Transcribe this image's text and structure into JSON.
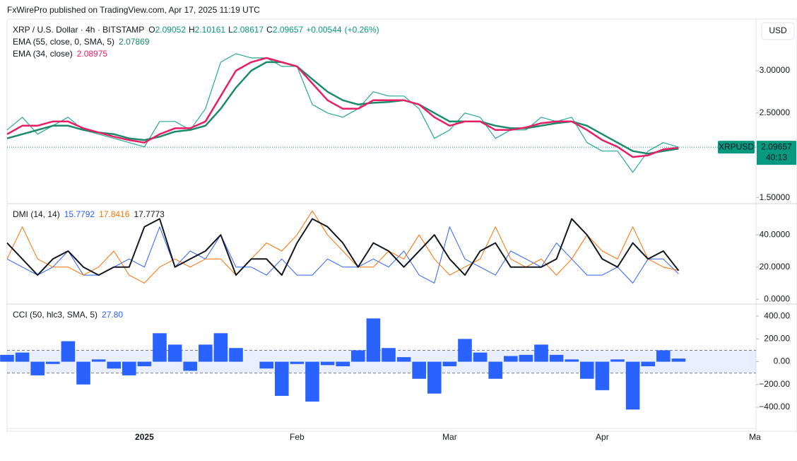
{
  "header": "FxWirePro published on TradingView.com, Apr 17, 2025 11:19 UTC",
  "currency": "USD",
  "symbol_tag": "XRPUSD",
  "countdown": "40:13",
  "chart_data": [
    {
      "type": "line",
      "title": "XRP / U.S. Dollar · 4h · BITSTAMP",
      "ohlc": [
        {
          "label": "O",
          "value": 2.09052
        },
        {
          "label": "H",
          "value": 2.10161
        },
        {
          "label": "L",
          "value": 2.08617
        },
        {
          "label": "C",
          "value": 2.09657
        }
      ],
      "change": "+0.00544",
      "change_pct": "(+0.26%)",
      "ylim": [
        1.43,
        3.6
      ],
      "yticks": [
        {
          "value": 1.5,
          "label": "1.50000"
        },
        {
          "value": 2.5,
          "label": "2.50000"
        },
        {
          "value": 3,
          "label": "3.00000"
        }
      ],
      "grid": false,
      "series": [
        {
          "color": "#26a69a",
          "width": 1.2,
          "values": [
            2.3,
            2.45,
            2.25,
            2.35,
            2.45,
            2.3,
            2.25,
            2.2,
            2.15,
            2.1,
            2.4,
            2.4,
            2.3,
            2.55,
            3.1,
            3.2,
            3.15,
            3.15,
            3.05,
            3.05,
            2.6,
            2.5,
            2.45,
            2.55,
            2.75,
            2.7,
            2.7,
            2.55,
            2.2,
            2.3,
            2.5,
            2.45,
            2.2,
            2.3,
            2.3,
            2.45,
            2.4,
            2.45,
            2.15,
            2.05,
            2.05,
            1.8,
            2.05,
            2.15,
            2.09657,
            null,
            null,
            null,
            null,
            null
          ]
        },
        {
          "name": "EMA (55, close, 0, SMA, 5)",
          "color": "#1b8a6b",
          "width": 2.5,
          "values": [
            2.2,
            2.25,
            2.3,
            2.35,
            2.35,
            2.3,
            2.27,
            2.25,
            2.2,
            2.18,
            2.22,
            2.28,
            2.3,
            2.35,
            2.55,
            2.8,
            3.0,
            3.1,
            3.1,
            3.05,
            2.9,
            2.75,
            2.65,
            2.6,
            2.62,
            2.63,
            2.65,
            2.6,
            2.5,
            2.4,
            2.4,
            2.4,
            2.35,
            2.32,
            2.32,
            2.35,
            2.38,
            2.4,
            2.35,
            2.25,
            2.15,
            2.05,
            2.02,
            2.05,
            2.07869,
            null,
            null,
            null,
            null,
            null
          ]
        },
        {
          "name": "EMA (34, close)",
          "color": "#e91e63",
          "width": 2.5,
          "values": [
            2.25,
            2.35,
            2.35,
            2.4,
            2.4,
            2.32,
            2.27,
            2.22,
            2.18,
            2.15,
            2.25,
            2.32,
            2.32,
            2.4,
            2.7,
            3.0,
            3.1,
            3.15,
            3.1,
            3.05,
            2.85,
            2.65,
            2.55,
            2.55,
            2.65,
            2.65,
            2.65,
            2.6,
            2.45,
            2.35,
            2.4,
            2.4,
            2.3,
            2.3,
            2.33,
            2.38,
            2.4,
            2.4,
            2.3,
            2.18,
            2.1,
            1.98,
            2.0,
            2.07,
            2.08975,
            null,
            null,
            null,
            null,
            null
          ]
        }
      ]
    },
    {
      "type": "line",
      "title": "DMI (14, 14)",
      "ylim": [
        -3,
        59
      ],
      "yticks": [
        {
          "value": 0,
          "label": "0.0000"
        },
        {
          "value": 20,
          "label": "20.0000"
        },
        {
          "value": 40,
          "label": "40.0000"
        }
      ],
      "grid": false,
      "series": [
        {
          "color": "#2962ff",
          "width": 1,
          "values": [
            25,
            20,
            15,
            20,
            30,
            15,
            15,
            20,
            25,
            20,
            45,
            20,
            30,
            25,
            40,
            20,
            20,
            15,
            25,
            15,
            15,
            25,
            20,
            20,
            25,
            20,
            30,
            15,
            10,
            45,
            25,
            20,
            15,
            30,
            25,
            20,
            35,
            25,
            15,
            15,
            20,
            10,
            25,
            25,
            15.7792,
            null,
            null,
            null,
            null,
            null
          ]
        },
        {
          "color": "#ff6d00",
          "width": 1,
          "values": [
            25,
            45,
            25,
            20,
            20,
            15,
            20,
            30,
            15,
            10,
            20,
            25,
            20,
            25,
            25,
            15,
            25,
            35,
            30,
            40,
            55,
            40,
            30,
            20,
            20,
            30,
            25,
            40,
            25,
            15,
            20,
            25,
            45,
            25,
            20,
            25,
            15,
            25,
            40,
            30,
            25,
            45,
            25,
            20,
            17.8416,
            null,
            null,
            null,
            null,
            null
          ]
        },
        {
          "color": "#131722",
          "width": 2,
          "values": [
            35,
            25,
            15,
            25,
            30,
            20,
            15,
            20,
            20,
            45,
            50,
            20,
            25,
            30,
            40,
            15,
            25,
            25,
            15,
            35,
            50,
            45,
            35,
            20,
            35,
            30,
            20,
            30,
            40,
            25,
            15,
            30,
            35,
            20,
            20,
            20,
            25,
            50,
            40,
            25,
            20,
            35,
            25,
            30,
            17.7773,
            null,
            null,
            null,
            null,
            null
          ]
        }
      ]
    },
    {
      "type": "bar",
      "title": "CCI (50, hlc3, SMA, 5)",
      "legend_value": {
        "value": 27.8,
        "label": "27.80"
      },
      "color": "#2962ff",
      "levels": [
        -100,
        100
      ],
      "ylim": [
        -580,
        500
      ],
      "yticks": [
        {
          "value": -400,
          "label": "−400.00"
        },
        {
          "value": -200,
          "label": "−200.00"
        },
        {
          "value": 0,
          "label": "0.00"
        },
        {
          "value": 200,
          "label": "200.00"
        },
        {
          "value": 400,
          "label": "400.00"
        }
      ],
      "grid": false,
      "categories": [
        null,
        null,
        null,
        null,
        null,
        null,
        null,
        null,
        null,
        "2025",
        null,
        null,
        null,
        null,
        null,
        null,
        null,
        null,
        null,
        "Feb",
        null,
        null,
        null,
        null,
        null,
        null,
        null,
        null,
        null,
        "Mar",
        null,
        null,
        null,
        null,
        null,
        null,
        null,
        null,
        null,
        "Apr",
        null,
        null,
        null,
        null,
        null,
        null,
        null,
        null,
        null,
        "Ma"
      ],
      "values": [
        60,
        80,
        -120,
        -20,
        180,
        -200,
        20,
        -60,
        -120,
        -40,
        250,
        150,
        -80,
        150,
        250,
        120,
        0,
        -60,
        -300,
        -20,
        -350,
        -30,
        -40,
        100,
        380,
        120,
        40,
        -150,
        -280,
        -40,
        200,
        80,
        -150,
        50,
        60,
        150,
        60,
        20,
        -150,
        -250,
        20,
        -420,
        -40,
        100,
        27.8,
        null,
        null,
        null,
        null,
        null
      ]
    }
  ]
}
